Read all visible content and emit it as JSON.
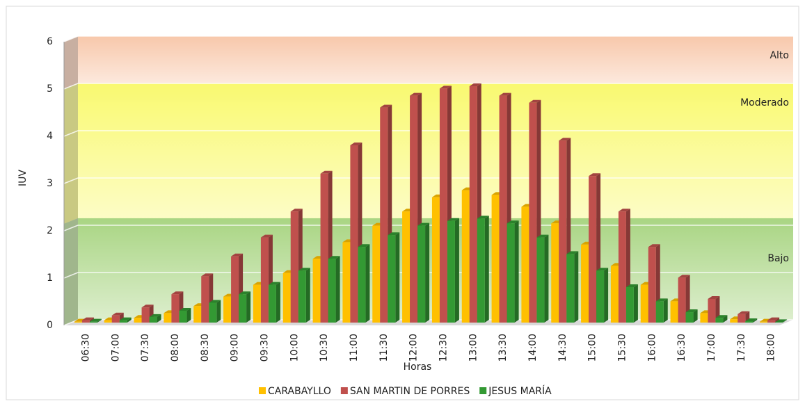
{
  "chart_data": {
    "type": "bar3d",
    "categories": [
      "06:30",
      "07:00",
      "07:30",
      "08:00",
      "08:30",
      "09:00",
      "09:30",
      "10:00",
      "10:30",
      "11:00",
      "11:30",
      "12:00",
      "12:30",
      "13:00",
      "13:30",
      "14:00",
      "14:30",
      "15:00",
      "15:30",
      "16:00",
      "16:30",
      "17:00",
      "17:30",
      "18:00"
    ],
    "series": [
      {
        "name": "CARABAYLLO",
        "color": "#ffc000",
        "values": [
          0.02,
          0.05,
          0.1,
          0.2,
          0.35,
          0.55,
          0.8,
          1.05,
          1.35,
          1.7,
          2.05,
          2.35,
          2.65,
          2.8,
          2.7,
          2.45,
          2.1,
          1.65,
          1.2,
          0.8,
          0.45,
          0.2,
          0.07,
          0.02
        ]
      },
      {
        "name": "SAN MARTIN DE PORRES",
        "color": "#c0504d",
        "values": [
          0.05,
          0.15,
          0.32,
          0.6,
          0.98,
          1.4,
          1.8,
          2.35,
          3.15,
          3.75,
          4.55,
          4.8,
          4.95,
          5.0,
          4.8,
          4.65,
          3.85,
          3.1,
          2.35,
          1.6,
          0.95,
          0.5,
          0.18,
          0.05
        ]
      },
      {
        "name": "JESUS MARÍA",
        "color": "#339933",
        "values": [
          0.02,
          0.05,
          0.12,
          0.25,
          0.42,
          0.6,
          0.8,
          1.1,
          1.35,
          1.6,
          1.85,
          2.05,
          2.15,
          2.2,
          2.1,
          1.8,
          1.45,
          1.1,
          0.75,
          0.45,
          0.22,
          0.1,
          0.03,
          0.01
        ]
      }
    ],
    "bands": [
      {
        "label": "Bajo",
        "from": 0,
        "to": 2.15,
        "color": "#8cc75a"
      },
      {
        "label": "Moderado",
        "from": 2.15,
        "to": 5,
        "color": "#f7f740"
      },
      {
        "label": "Alto",
        "from": 5,
        "to": 6,
        "color": "#f5b58f"
      }
    ],
    "xlabel": "Horas",
    "ylabel": "IUV",
    "ylim": [
      0,
      6
    ],
    "yticks": [
      0,
      1,
      2,
      3,
      4,
      5,
      6
    ],
    "grid": true,
    "legend": "bottom"
  }
}
